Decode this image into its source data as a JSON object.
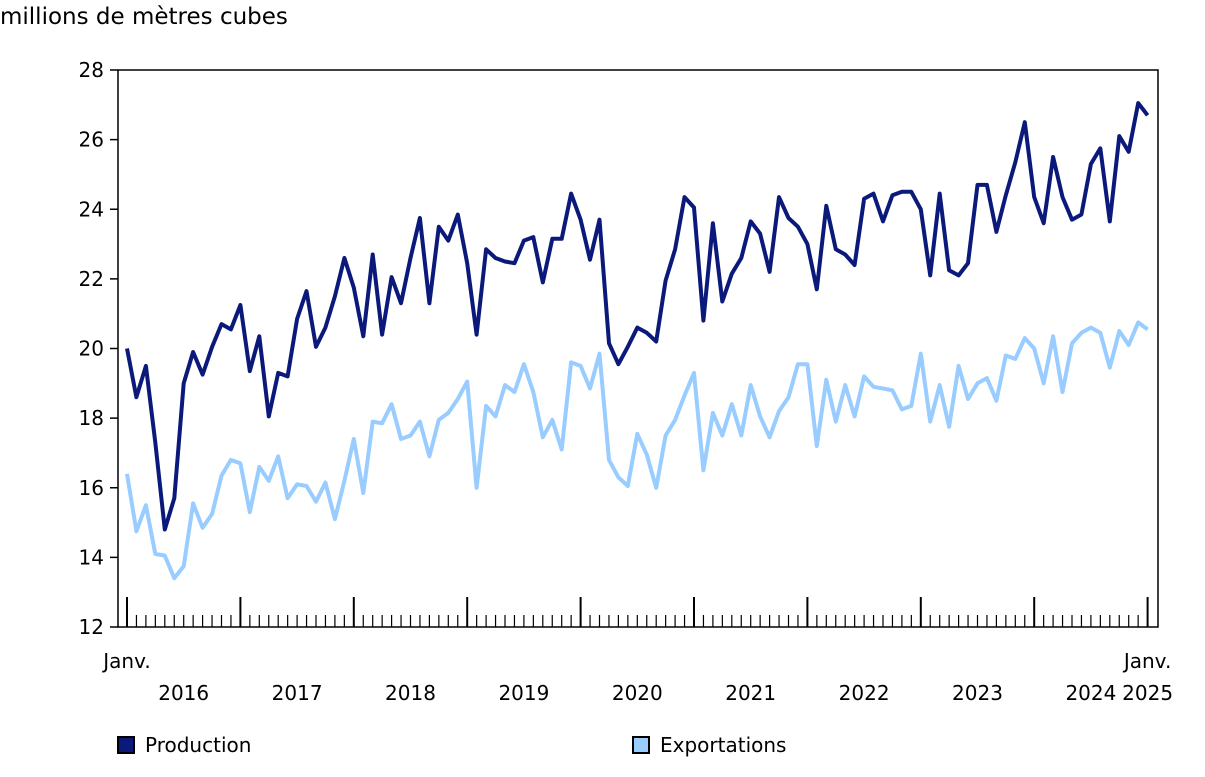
{
  "chart_data": {
    "type": "line",
    "ylabel": "millions de mètres cubes",
    "ylim": [
      12,
      28
    ],
    "yticks": [
      12,
      14,
      16,
      18,
      20,
      22,
      24,
      26,
      28
    ],
    "x_start_label": "Janv.",
    "x_end_label": "Janv.",
    "year_labels": [
      "2016",
      "2017",
      "2018",
      "2019",
      "2020",
      "2021",
      "2022",
      "2023",
      "2024",
      "2025"
    ],
    "grid": false,
    "legend_position": "bottom",
    "colors": {
      "production": "#0b1a7a",
      "exportations": "#99ccff"
    },
    "series": [
      {
        "name": "Production",
        "values": [
          20.0,
          18.6,
          19.5,
          17.3,
          14.8,
          15.7,
          19.0,
          19.9,
          19.25,
          20.05,
          20.7,
          20.55,
          21.25,
          19.35,
          20.35,
          18.05,
          19.3,
          19.2,
          20.85,
          21.65,
          20.05,
          20.6,
          21.5,
          22.6,
          21.75,
          20.35,
          22.7,
          20.4,
          22.05,
          21.3,
          22.6,
          23.75,
          21.3,
          23.5,
          23.1,
          23.85,
          22.45,
          20.4,
          22.85,
          22.6,
          22.5,
          22.45,
          23.1,
          23.2,
          21.9,
          23.15,
          23.15,
          24.45,
          23.7,
          22.55,
          23.7,
          20.15,
          19.55,
          20.05,
          20.6,
          20.45,
          20.2,
          21.95,
          22.85,
          24.35,
          24.05,
          20.8,
          23.6,
          21.35,
          22.15,
          22.6,
          23.65,
          23.3,
          22.2,
          24.35,
          23.75,
          23.5,
          23.0,
          21.7,
          24.1,
          22.85,
          22.7,
          22.4,
          24.3,
          24.45,
          23.65,
          24.4,
          24.5,
          24.5,
          24.0,
          22.1,
          24.45,
          22.25,
          22.1,
          22.45,
          24.7,
          24.7,
          23.35,
          24.4,
          25.35,
          26.5,
          24.35,
          23.6,
          25.5,
          24.35,
          23.7,
          23.85,
          25.3,
          25.75,
          23.65,
          26.1,
          25.65,
          27.05,
          26.7
        ]
      },
      {
        "name": "Exportations",
        "values": [
          16.4,
          14.75,
          15.5,
          14.1,
          14.05,
          13.4,
          13.75,
          15.55,
          14.85,
          15.25,
          16.35,
          16.8,
          16.7,
          15.3,
          16.6,
          16.2,
          16.9,
          15.7,
          16.1,
          16.05,
          15.6,
          16.15,
          15.1,
          16.2,
          17.4,
          15.85,
          17.9,
          17.85,
          18.4,
          17.4,
          17.5,
          17.9,
          16.9,
          17.95,
          18.15,
          18.55,
          19.05,
          16.0,
          18.35,
          18.05,
          18.95,
          18.75,
          19.55,
          18.75,
          17.45,
          17.95,
          17.1,
          19.6,
          19.5,
          18.85,
          19.85,
          16.8,
          16.3,
          16.05,
          17.55,
          16.95,
          16.0,
          17.5,
          17.95,
          18.65,
          19.3,
          16.5,
          18.15,
          17.5,
          18.4,
          17.5,
          18.95,
          18.05,
          17.45,
          18.2,
          18.6,
          19.55,
          19.55,
          17.2,
          19.1,
          17.9,
          18.95,
          18.05,
          19.2,
          18.9,
          18.85,
          18.8,
          18.25,
          18.35,
          19.85,
          17.9,
          18.95,
          17.75,
          19.5,
          18.55,
          19.0,
          19.15,
          18.5,
          19.8,
          19.7,
          20.3,
          20.0,
          19.0,
          20.35,
          18.75,
          20.15,
          20.45,
          20.6,
          20.45,
          19.45,
          20.5,
          20.1,
          20.75,
          20.55
        ]
      }
    ]
  }
}
